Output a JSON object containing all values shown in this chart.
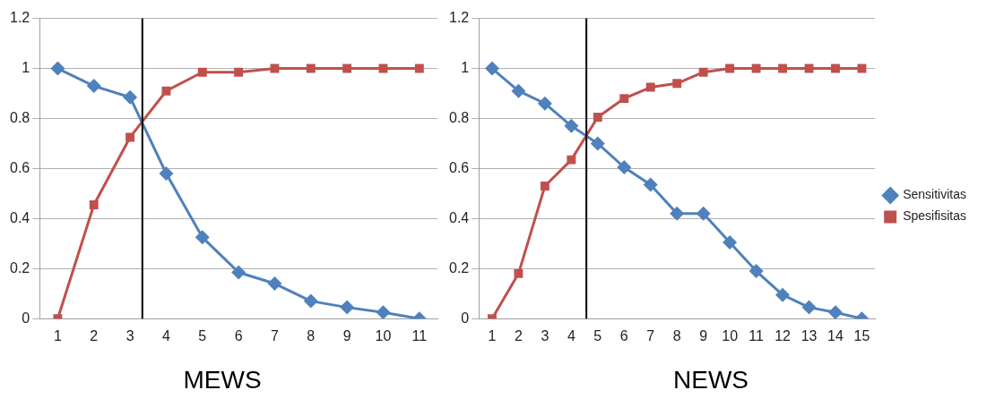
{
  "chart_data": [
    {
      "type": "line",
      "title": "MEWS",
      "x": [
        1,
        2,
        3,
        4,
        5,
        6,
        7,
        8,
        9,
        10,
        11
      ],
      "xlim": [
        0.5,
        11.5
      ],
      "xticks": [
        1,
        2,
        3,
        4,
        5,
        6,
        7,
        8,
        9,
        10,
        11
      ],
      "ylim": [
        0,
        1.2
      ],
      "yticks": [
        0,
        0.2,
        0.4,
        0.6,
        0.8,
        1,
        1.2
      ],
      "grid": "y",
      "legend": false,
      "series": [
        {
          "color": "#4f81bd",
          "marker": "diamond",
          "values": [
            1,
            0.93,
            0.885,
            0.58,
            0.325,
            0.185,
            0.14,
            0.07,
            0.045,
            0.025,
            0
          ]
        },
        {
          "color": "#c0504d",
          "marker": "square",
          "values": [
            0,
            0.455,
            0.725,
            0.91,
            0.985,
            0.985,
            1,
            1,
            1,
            1,
            1
          ]
        }
      ],
      "ref_lines": [
        {
          "axis": "x",
          "value": 3.34,
          "color": "#000000"
        }
      ]
    },
    {
      "type": "line",
      "title": "NEWS",
      "x": [
        1,
        2,
        3,
        4,
        5,
        6,
        7,
        8,
        9,
        10,
        11,
        12,
        13,
        14,
        15
      ],
      "xlim": [
        0.5,
        15.5
      ],
      "xticks": [
        1,
        2,
        3,
        4,
        5,
        6,
        7,
        8,
        9,
        10,
        11,
        12,
        13,
        14,
        15
      ],
      "ylim": [
        0,
        1.2
      ],
      "yticks": [
        0,
        0.2,
        0.4,
        0.6,
        0.8,
        1,
        1.2
      ],
      "grid": "y",
      "legend": "right",
      "series": [
        {
          "name": "Sensitivitas",
          "color": "#4f81bd",
          "marker": "diamond",
          "values": [
            1,
            0.91,
            0.86,
            0.77,
            0.7,
            0.605,
            0.535,
            0.42,
            0.42,
            0.305,
            0.19,
            0.095,
            0.045,
            0.025,
            0
          ]
        },
        {
          "name": "Spesifisitas",
          "color": "#c0504d",
          "marker": "square",
          "values": [
            0,
            0.18,
            0.53,
            0.635,
            0.805,
            0.88,
            0.925,
            0.94,
            0.985,
            1,
            1,
            1,
            1,
            1,
            1
          ]
        }
      ],
      "ref_lines": [
        {
          "axis": "x",
          "value": 4.57,
          "color": "#000000"
        }
      ]
    }
  ]
}
